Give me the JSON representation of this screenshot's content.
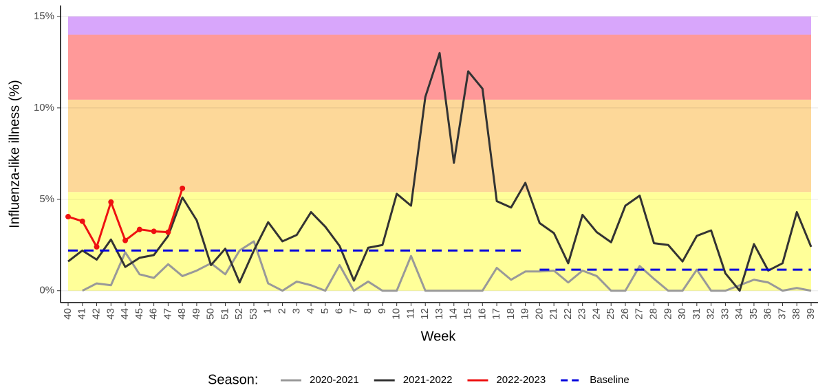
{
  "chart_data": {
    "type": "line",
    "x_label": "Week",
    "y_label": "Influenza-like illness (%)",
    "categories": [
      "40",
      "41",
      "42",
      "43",
      "44",
      "45",
      "46",
      "47",
      "48",
      "49",
      "50",
      "51",
      "52",
      "53",
      "1",
      "2",
      "3",
      "4",
      "5",
      "6",
      "7",
      "8",
      "9",
      "10",
      "11",
      "12",
      "13",
      "14",
      "15",
      "16",
      "17",
      "18",
      "19",
      "20",
      "21",
      "22",
      "23",
      "24",
      "25",
      "26",
      "27",
      "28",
      "29",
      "30",
      "31",
      "32",
      "33",
      "34",
      "35",
      "36",
      "37",
      "38",
      "39"
    ],
    "ylim": [
      -0.65,
      15.6
    ],
    "yticks": [
      {
        "value": 0,
        "label": "0%"
      },
      {
        "value": 5,
        "label": "5%"
      },
      {
        "value": 10,
        "label": "10%"
      },
      {
        "value": 15,
        "label": "15%"
      }
    ],
    "grid": true,
    "bands": [
      {
        "from": 0,
        "to": 5.4,
        "color": "#ffff99"
      },
      {
        "from": 5.4,
        "to": 10.45,
        "color": "#fdd899"
      },
      {
        "from": 10.45,
        "to": 14,
        "color": "#ff9999"
      },
      {
        "from": 14,
        "to": 15,
        "color": "#d8a6fb"
      }
    ],
    "legend_title": "Season:",
    "legend_position": "bottom",
    "series": [
      {
        "name": "2020-2021",
        "color": "#999999",
        "values": [
          null,
          0,
          0.4,
          0.3,
          2.1,
          0.9,
          0.7,
          1.45,
          0.8,
          1.1,
          1.5,
          0.9,
          2.2,
          2.7,
          0.4,
          0,
          0.5,
          0.3,
          0,
          1.4,
          0,
          0.5,
          0,
          0,
          1.9,
          0,
          0,
          0,
          0,
          0,
          1.25,
          0.6,
          1.05,
          1.05,
          1.1,
          0.45,
          1.1,
          0.8,
          0,
          0,
          1.35,
          0.65,
          0,
          0,
          1.15,
          0,
          0,
          0.3,
          0.6,
          0.45,
          0,
          0.15,
          0
        ]
      },
      {
        "name": "2021-2022",
        "color": "#333333",
        "values": [
          1.6,
          2.2,
          1.7,
          2.8,
          1.3,
          1.8,
          1.95,
          3.0,
          5.1,
          3.85,
          1.4,
          2.3,
          0.45,
          2.2,
          3.75,
          2.7,
          3.05,
          4.3,
          3.5,
          2.45,
          0.55,
          2.35,
          2.5,
          5.3,
          4.65,
          10.6,
          13.0,
          7.0,
          12.0,
          11.05,
          4.9,
          4.55,
          5.9,
          3.7,
          3.15,
          1.5,
          4.15,
          3.2,
          2.65,
          4.65,
          5.2,
          2.6,
          2.5,
          1.6,
          3.0,
          3.3,
          0.95,
          0,
          2.55,
          1.1,
          1.5,
          4.3,
          2.4
        ]
      },
      {
        "name": "2022-2023",
        "color": "#ee1111",
        "markers": true,
        "values": [
          4.05,
          3.8,
          2.4,
          4.85,
          2.75,
          3.35,
          3.25,
          3.2,
          5.6,
          null,
          null,
          null,
          null,
          null,
          null,
          null,
          null,
          null,
          null,
          null,
          null,
          null,
          null,
          null,
          null,
          null,
          null,
          null,
          null,
          null,
          null,
          null,
          null,
          null,
          null,
          null,
          null,
          null,
          null,
          null,
          null,
          null,
          null,
          null,
          null,
          null,
          null,
          null,
          null,
          null,
          null,
          null,
          null
        ]
      },
      {
        "name": "Baseline",
        "color": "#0000dd",
        "dashed": true,
        "values": [
          2.2,
          2.2,
          2.2,
          2.2,
          2.2,
          2.2,
          2.2,
          2.2,
          2.2,
          2.2,
          2.2,
          2.2,
          2.2,
          2.2,
          2.2,
          2.2,
          2.2,
          2.2,
          2.2,
          2.2,
          2.2,
          2.2,
          2.2,
          2.2,
          2.2,
          2.2,
          2.2,
          2.2,
          2.2,
          2.2,
          2.2,
          2.2,
          2.2,
          1.15,
          1.15,
          1.15,
          1.15,
          1.15,
          1.15,
          1.15,
          1.15,
          1.15,
          1.15,
          1.15,
          1.15,
          1.15,
          1.15,
          1.15,
          1.15,
          1.15,
          1.15,
          1.15,
          1.15
        ]
      }
    ]
  }
}
